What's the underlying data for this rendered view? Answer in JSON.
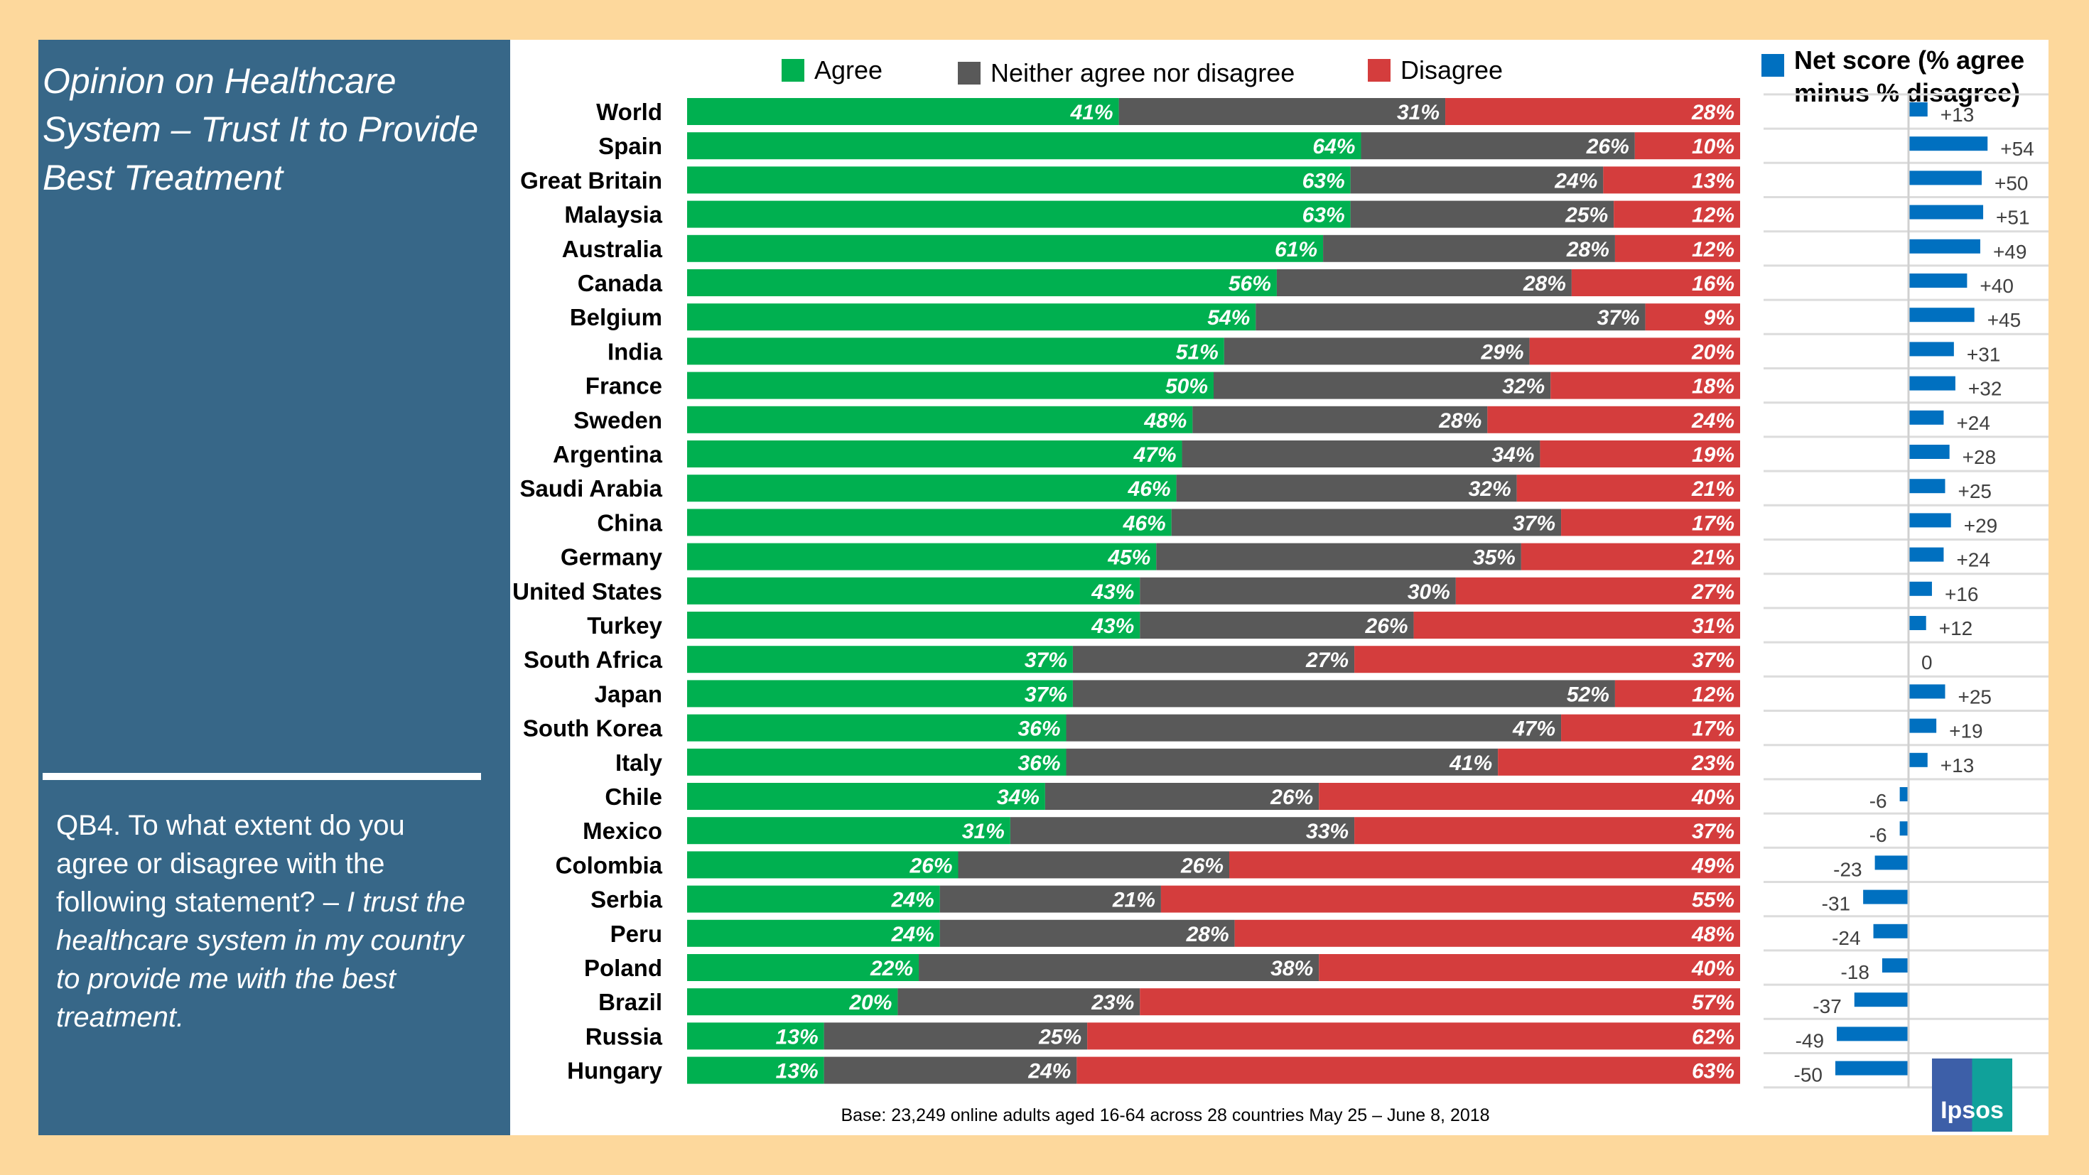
{
  "panel": {
    "title": "Opinion on Healthcare System – Trust It to Provide Best Treatment",
    "question_prefix": "QB4. To what extent do you agree or disagree with the following statement? – ",
    "question_statement": "I trust the healthcare system in my country to provide me with the best treatment."
  },
  "footer": {
    "base": "Base: 23,249 online adults aged 16-64 across 28 countries  May 25 – June 8, 2018"
  },
  "logo_text": "Ipsos",
  "colors": {
    "agree": "#00b050",
    "neither": "#595959",
    "disagree": "#d43d3d",
    "net": "#0070c0",
    "panel": "#376788",
    "background": "#fdd89c"
  },
  "chart_data": [
    {
      "type": "bar",
      "stacked": true,
      "orientation": "horizontal",
      "legend": [
        "Agree",
        "Neither agree nor disagree",
        "Disagree"
      ],
      "legend_position": "top",
      "categories": [
        "World",
        "Spain",
        "Great Britain",
        "Malaysia",
        "Australia",
        "Canada",
        "Belgium",
        "India",
        "France",
        "Sweden",
        "Argentina",
        "Saudi Arabia",
        "China",
        "Germany",
        "United States",
        "Turkey",
        "South Africa",
        "Japan",
        "South Korea",
        "Italy",
        "Chile",
        "Mexico",
        "Colombia",
        "Serbia",
        "Peru",
        "Poland",
        "Brazil",
        "Russia",
        "Hungary"
      ],
      "series": [
        {
          "name": "Agree",
          "values": [
            41,
            64,
            63,
            63,
            61,
            56,
            54,
            51,
            50,
            48,
            47,
            46,
            46,
            45,
            43,
            43,
            37,
            37,
            36,
            36,
            34,
            31,
            26,
            24,
            24,
            22,
            20,
            13,
            13
          ]
        },
        {
          "name": "Neither agree nor disagree",
          "values": [
            31,
            26,
            24,
            25,
            28,
            28,
            37,
            29,
            32,
            28,
            34,
            32,
            37,
            35,
            30,
            26,
            27,
            52,
            47,
            41,
            26,
            33,
            26,
            21,
            28,
            38,
            23,
            25,
            24
          ]
        },
        {
          "name": "Disagree",
          "values": [
            28,
            10,
            13,
            12,
            12,
            16,
            9,
            20,
            18,
            24,
            19,
            21,
            17,
            21,
            27,
            31,
            37,
            12,
            17,
            23,
            40,
            37,
            49,
            55,
            48,
            40,
            57,
            62,
            63
          ]
        }
      ],
      "value_suffix": "%"
    },
    {
      "type": "bar",
      "orientation": "horizontal",
      "legend": [
        "Net score (% agree minus % disagree)"
      ],
      "categories": [
        "World",
        "Spain",
        "Great Britain",
        "Malaysia",
        "Australia",
        "Canada",
        "Belgium",
        "India",
        "France",
        "Sweden",
        "Argentina",
        "Saudi Arabia",
        "China",
        "Germany",
        "United States",
        "Turkey",
        "South Africa",
        "Japan",
        "South Korea",
        "Italy",
        "Chile",
        "Mexico",
        "Colombia",
        "Serbia",
        "Peru",
        "Poland",
        "Brazil",
        "Russia",
        "Hungary"
      ],
      "values": [
        13,
        54,
        50,
        51,
        49,
        40,
        45,
        31,
        32,
        24,
        28,
        25,
        29,
        24,
        16,
        12,
        0,
        25,
        19,
        13,
        -6,
        -6,
        -23,
        -31,
        -24,
        -18,
        -37,
        -49,
        -50
      ],
      "labels": [
        "+13",
        "+54",
        "+50",
        "+51",
        "+49",
        "+40",
        "+45",
        "+31",
        "+32",
        "+24",
        "+28",
        "+25",
        "+29",
        "+24",
        "+16",
        "+12",
        "0",
        "+25",
        "+19",
        "+13",
        "-6",
        "-6",
        "-23",
        "-31",
        "-24",
        "-18",
        "-37",
        "-49",
        "-50"
      ]
    }
  ]
}
